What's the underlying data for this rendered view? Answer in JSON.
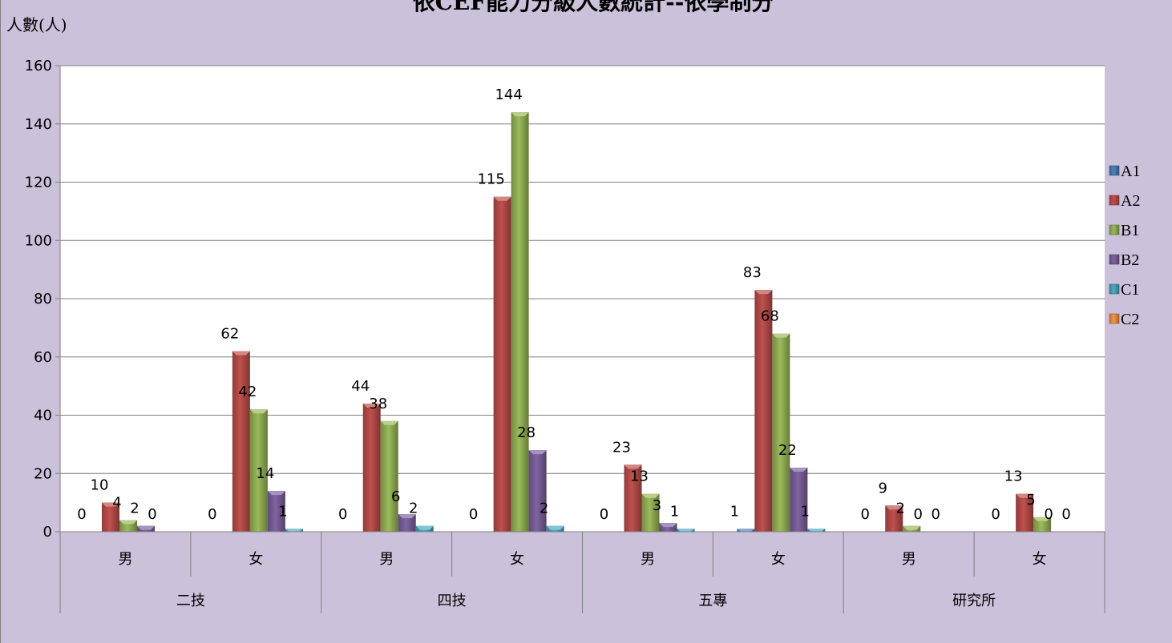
{
  "chart_data": {
    "type": "bar",
    "title": "依CEF能力分級人數統計--依學制分",
    "ylabel": "人數(人)",
    "ylim": [
      0,
      160
    ],
    "y_ticks": [
      0,
      20,
      40,
      60,
      80,
      100,
      120,
      140,
      160
    ],
    "grid": true,
    "legend_position": "right",
    "groups": [
      "二技",
      "四技",
      "五專",
      "研究所"
    ],
    "categories": [
      "男",
      "女",
      "男",
      "女",
      "男",
      "女",
      "男",
      "女"
    ],
    "series": [
      {
        "name": "A1",
        "color": "#4f81bd",
        "values": [
          0,
          0,
          0,
          0,
          0,
          1,
          0,
          0
        ]
      },
      {
        "name": "A2",
        "color": "#c0504d",
        "values": [
          10,
          62,
          44,
          115,
          23,
          83,
          9,
          13
        ]
      },
      {
        "name": "B1",
        "color": "#9bbb59",
        "values": [
          4,
          42,
          38,
          144,
          13,
          68,
          2,
          5
        ]
      },
      {
        "name": "B2",
        "color": "#8064a2",
        "values": [
          2,
          14,
          6,
          28,
          3,
          22,
          0,
          0
        ]
      },
      {
        "name": "C1",
        "color": "#4bacc6",
        "values": [
          0,
          1,
          2,
          2,
          1,
          1,
          0,
          0
        ]
      },
      {
        "name": "C2",
        "color": "#f79646",
        "values": [
          0,
          0,
          0,
          0,
          0,
          0,
          0,
          0
        ]
      }
    ],
    "data_labels": [
      [
        {
          "series": "A1",
          "text": "0"
        },
        {
          "series": "A2",
          "text": "10"
        },
        {
          "series": "B1",
          "text": "4"
        },
        {
          "series": "B2",
          "text": "2"
        },
        {
          "series": "C1",
          "text": "0"
        }
      ],
      [
        {
          "series": "A1",
          "text": "0"
        },
        {
          "series": "A2",
          "text": "62"
        },
        {
          "series": "B1",
          "text": "42"
        },
        {
          "series": "B2",
          "text": "14"
        },
        {
          "series": "C1",
          "text": "1"
        }
      ],
      [
        {
          "series": "A1",
          "text": "0"
        },
        {
          "series": "A2",
          "text": "44"
        },
        {
          "series": "B1",
          "text": "38"
        },
        {
          "series": "B2",
          "text": "6"
        },
        {
          "series": "C1",
          "text": "2"
        }
      ],
      [
        {
          "series": "A1",
          "text": "0"
        },
        {
          "series": "A2",
          "text": "115"
        },
        {
          "series": "B1",
          "text": "144"
        },
        {
          "series": "B2",
          "text": "28"
        },
        {
          "series": "C1",
          "text": "2"
        }
      ],
      [
        {
          "series": "A1",
          "text": "0"
        },
        {
          "series": "A2",
          "text": "23"
        },
        {
          "series": "B1",
          "text": "13"
        },
        {
          "series": "B2",
          "text": "3"
        },
        {
          "series": "C1",
          "text": "1"
        }
      ],
      [
        {
          "series": "A1",
          "text": "1"
        },
        {
          "series": "A2",
          "text": "83"
        },
        {
          "series": "B1",
          "text": "68"
        },
        {
          "series": "B2",
          "text": "22"
        },
        {
          "series": "C1",
          "text": "1"
        }
      ],
      [
        {
          "series": "A1",
          "text": "0"
        },
        {
          "series": "A2",
          "text": "9"
        },
        {
          "series": "B1",
          "text": "2"
        },
        {
          "series": "B2",
          "text": "0"
        },
        {
          "series": "C1",
          "text": "0"
        }
      ],
      [
        {
          "series": "A1",
          "text": "0"
        },
        {
          "series": "A2",
          "text": "13"
        },
        {
          "series": "B1",
          "text": "5"
        },
        {
          "series": "B2",
          "text": "0"
        },
        {
          "series": "C1",
          "text": "0"
        }
      ]
    ]
  },
  "colors": {
    "outer_background": "#ccc1da",
    "plot_background": "#ffffff",
    "gridline": "#7f7f7f"
  }
}
